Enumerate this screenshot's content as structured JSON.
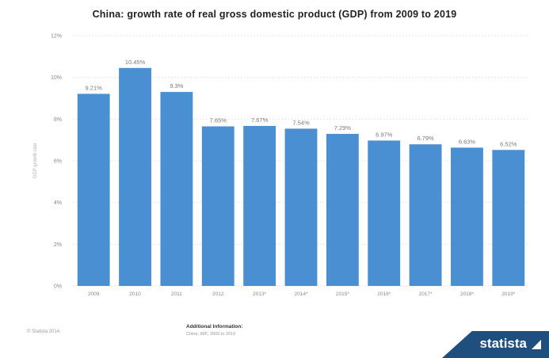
{
  "chart_data": {
    "type": "bar",
    "title": "China: growth rate of real gross domestic product (GDP) from 2009 to 2019",
    "ylabel": "GDP growth rate",
    "categories": [
      "2009",
      "2010",
      "2011",
      "2012",
      "2013*",
      "2014*",
      "2015*",
      "2016*",
      "2017*",
      "2018*",
      "2019*"
    ],
    "values": [
      9.21,
      10.45,
      9.3,
      7.65,
      7.67,
      7.54,
      7.29,
      6.97,
      6.79,
      6.63,
      6.52
    ],
    "value_labels": [
      "9.21%",
      "10.45%",
      "9.3%",
      "7.65%",
      "7.67%",
      "7.54%",
      "7.29%",
      "6.97%",
      "6.79%",
      "6.63%",
      "6.52%"
    ],
    "y_ticks": [
      0,
      2,
      4,
      6,
      8,
      10,
      12
    ],
    "y_tick_labels": [
      "0%",
      "2%",
      "4%",
      "6%",
      "8%",
      "10%",
      "12%"
    ],
    "ylim": [
      0,
      12
    ],
    "grid": true,
    "bar_color": "#4a8fd1"
  },
  "footer": {
    "source": "© Statista 2014",
    "additional_info": "Additional Information:",
    "additional_sub": "China; IMF; 2009 to 2019"
  },
  "branding": {
    "name": "statista",
    "banner_color": "#1f4f7f"
  }
}
